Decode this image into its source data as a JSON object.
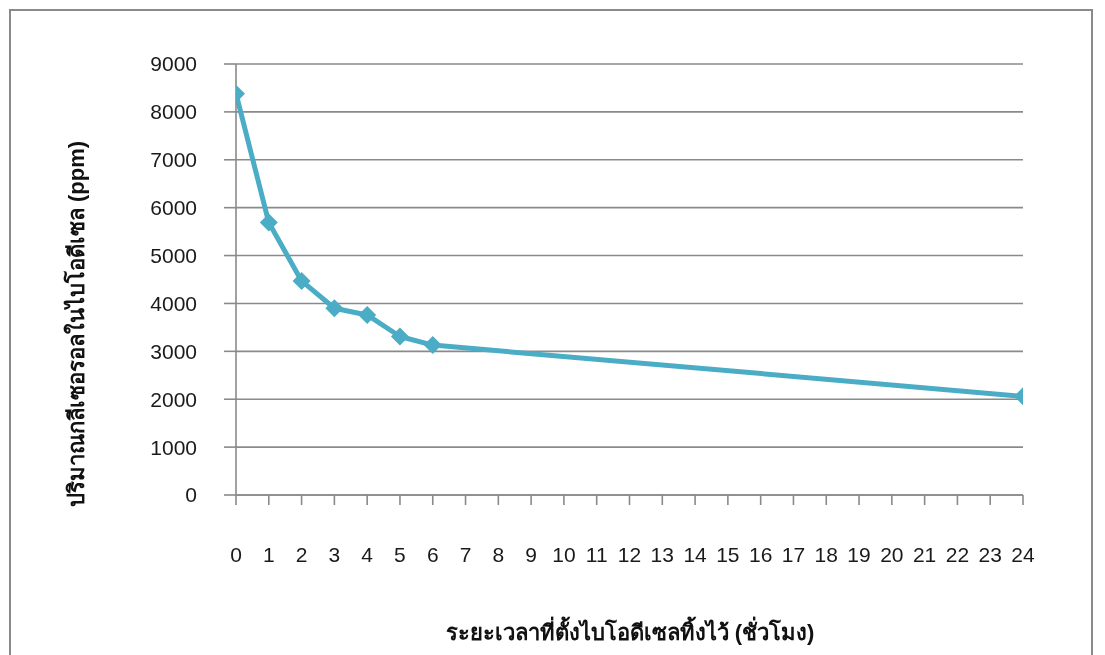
{
  "chart_data": {
    "type": "line",
    "xlabel": "ระยะเวลาที่ตั้งไบโอดีเซลทิ้งไว้ (ชั่วโมง)",
    "ylabel": "ปริมาณกลีเซอรอลในไบโอดีเซล (ppm)",
    "x": [
      0,
      1,
      2,
      3,
      4,
      5,
      6,
      24
    ],
    "values": [
      8380,
      5690,
      4470,
      3900,
      3760,
      3310,
      3130,
      2060
    ],
    "color": "#4bacc6",
    "xlim": [
      0,
      24
    ],
    "xticks": [
      0,
      1,
      2,
      3,
      4,
      5,
      6,
      7,
      8,
      9,
      10,
      11,
      12,
      13,
      14,
      15,
      16,
      17,
      18,
      19,
      20,
      21,
      22,
      23,
      24
    ],
    "ylim": [
      0,
      9000
    ],
    "yticks": [
      0,
      1000,
      2000,
      3000,
      4000,
      5000,
      6000,
      7000,
      8000,
      9000
    ],
    "grid": "y",
    "marker": "diamond",
    "line_style": "solid"
  }
}
